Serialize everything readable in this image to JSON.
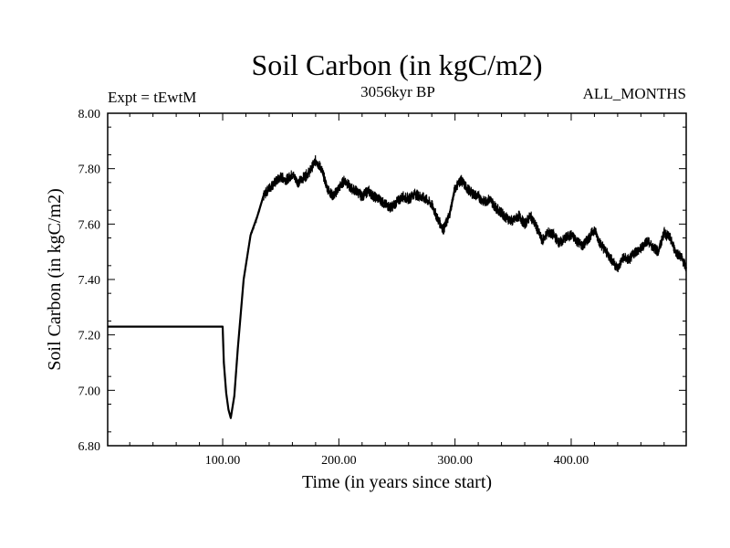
{
  "chart_data": {
    "type": "line",
    "title": "Soil Carbon (in kgC/m2)",
    "subtitle": "3056kyr BP",
    "left_label": "Expt = tEwtM",
    "right_label": "ALL_MONTHS",
    "xlabel": "Time (in years since start)",
    "ylabel": "Soil Carbon (in kgC/m2)",
    "xlim": [
      1,
      499
    ],
    "ylim": [
      6.8,
      8.0
    ],
    "xticks": [
      100,
      200,
      300,
      400
    ],
    "xtick_labels": [
      "100.00",
      "200.00",
      "300.00",
      "400.00"
    ],
    "yticks": [
      6.8,
      7.0,
      7.2,
      7.4,
      7.6,
      7.8,
      8.0
    ],
    "ytick_labels": [
      "6.80",
      "7.00",
      "7.20",
      "7.40",
      "7.60",
      "7.80",
      "8.00"
    ],
    "series": [
      {
        "name": "Soil Carbon",
        "x": [
          1,
          100,
          101,
          103,
          105,
          107,
          110,
          113,
          118,
          124,
          130,
          135,
          140,
          145,
          150,
          155,
          160,
          165,
          170,
          175,
          180,
          185,
          190,
          195,
          200,
          205,
          210,
          215,
          220,
          225,
          230,
          235,
          240,
          245,
          250,
          255,
          260,
          265,
          270,
          275,
          280,
          285,
          290,
          295,
          300,
          305,
          310,
          315,
          320,
          325,
          330,
          335,
          340,
          345,
          350,
          355,
          360,
          365,
          370,
          375,
          380,
          385,
          390,
          395,
          400,
          405,
          410,
          415,
          420,
          425,
          430,
          435,
          440,
          445,
          450,
          455,
          460,
          465,
          470,
          475,
          480,
          485,
          490,
          495,
          499
        ],
        "y": [
          7.23,
          7.23,
          7.1,
          6.99,
          6.93,
          6.9,
          6.98,
          7.15,
          7.4,
          7.56,
          7.63,
          7.7,
          7.73,
          7.75,
          7.77,
          7.76,
          7.78,
          7.75,
          7.77,
          7.79,
          7.83,
          7.8,
          7.73,
          7.7,
          7.73,
          7.76,
          7.73,
          7.72,
          7.7,
          7.72,
          7.7,
          7.69,
          7.67,
          7.66,
          7.68,
          7.7,
          7.69,
          7.71,
          7.7,
          7.69,
          7.67,
          7.62,
          7.58,
          7.63,
          7.73,
          7.76,
          7.73,
          7.71,
          7.7,
          7.68,
          7.69,
          7.66,
          7.64,
          7.62,
          7.61,
          7.63,
          7.6,
          7.63,
          7.59,
          7.54,
          7.57,
          7.56,
          7.53,
          7.55,
          7.56,
          7.54,
          7.52,
          7.55,
          7.58,
          7.53,
          7.5,
          7.47,
          7.44,
          7.48,
          7.47,
          7.5,
          7.51,
          7.54,
          7.52,
          7.5,
          7.57,
          7.55,
          7.5,
          7.48,
          7.44
        ]
      }
    ]
  }
}
